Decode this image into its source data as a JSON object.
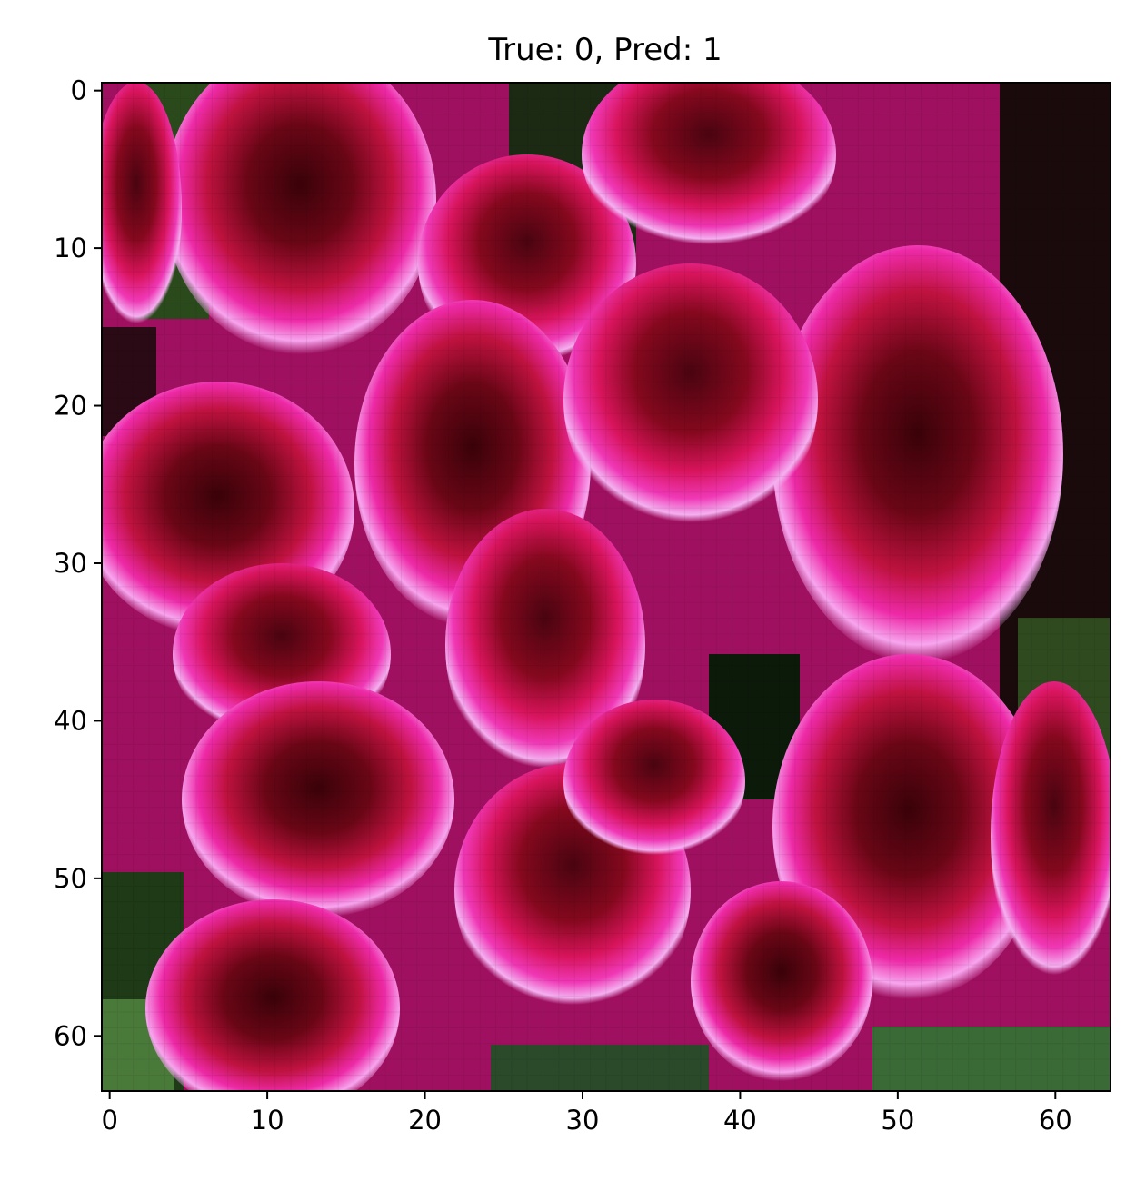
{
  "figure": {
    "title": "True: 0, Pred: 1",
    "x_axis": {
      "ticks": [
        0,
        10,
        20,
        30,
        40,
        50,
        60
      ],
      "lim": [
        -0.5,
        63.5
      ]
    },
    "y_axis": {
      "ticks": [
        0,
        10,
        20,
        30,
        40,
        50,
        60
      ],
      "lim": [
        63.5,
        -0.5
      ],
      "inverted": true
    },
    "image": {
      "description": "pixelated 64x64 photo of magenta/pink geranium flowers with dark crimson centers and pale pink edges, green foliage in corners",
      "pixels": 64,
      "palette": {
        "hot_pink": "#e82aa6",
        "pale_pink": "#f59ae8",
        "crimson": "#b0102e",
        "dark_red": "#5a0616",
        "near_black": "#14080a",
        "leaf_green": "#3f6a32",
        "dark_green": "#1e3a16"
      }
    }
  }
}
